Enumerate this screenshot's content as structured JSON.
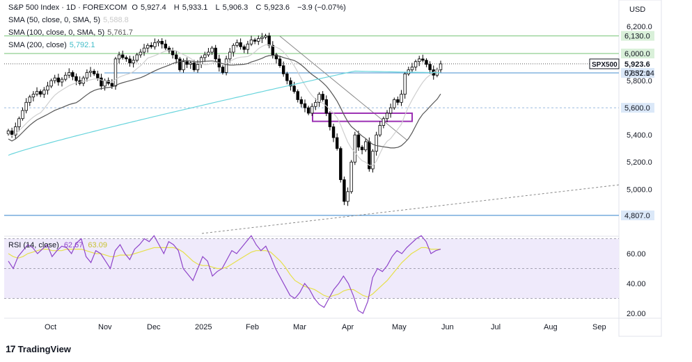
{
  "header": {
    "symbol": "S&P 500 Index · 1D · FOREXCOM",
    "ohlc": [
      {
        "label": "O",
        "value": "5,927.4"
      },
      {
        "label": "H",
        "value": "5,933.1"
      },
      {
        "label": "L",
        "value": "5,906.3"
      },
      {
        "label": "C",
        "value": "5,923.6"
      }
    ],
    "change": "−3.9 (−0.07%)"
  },
  "indicators": [
    {
      "label": "SMA (50, close, 0, SMA, 5)",
      "value": "5,588.8",
      "color": "#c9c9c9"
    },
    {
      "label": "SMA (100, close, 0, SMA, 5)",
      "value": "5,761.7",
      "color": "#555555"
    },
    {
      "label": "SMA (200, close)",
      "value": "5,792.1",
      "color": "#67d4dc"
    }
  ],
  "currency": "USD",
  "brand": "TradingView",
  "colors": {
    "up": "#000000",
    "down": "#000000",
    "support_blue": "#5b9bd5",
    "resistance_green": "#8fcf8f",
    "box_purple": "#9b30b3",
    "rsi_bg": "#efeafb",
    "rsi_line": "#8e44c9",
    "rsi_ma": "#e6e04a"
  },
  "chart_data": [
    {
      "type": "candlestick",
      "title": "S&P 500 Index · 1D · FOREXCOM",
      "x_ticks": [
        "Oct",
        "Nov",
        "Dec",
        "2025",
        "Feb",
        "Mar",
        "Apr",
        "May",
        "Jun",
        "Jul",
        "Aug",
        "Sep"
      ],
      "y_ticks": [
        "6,200.0",
        "6,000.0",
        "5,800.0",
        "5,600.0",
        "5,400.0",
        "5,200.0",
        "5,000.0"
      ],
      "ylim": [
        4780,
        6260
      ],
      "price_labels": [
        {
          "text": "6,130.0",
          "value": 6130,
          "kind": "resistance"
        },
        {
          "text": "6,000.0",
          "value": 6000,
          "kind": "resistance"
        },
        {
          "text": "5,923.6",
          "value": 5923.6,
          "kind": "last"
        },
        {
          "text": "5,857.0",
          "value": 5857,
          "kind": "support"
        },
        {
          "text": "5,600.0",
          "value": 5600,
          "kind": "support"
        },
        {
          "text": "4,807.0",
          "value": 4807,
          "kind": "support"
        }
      ],
      "last_price_tag": {
        "symbol": "SPX500",
        "price": "5,923.6",
        "countdown": "07:32:14"
      },
      "series_approx_close": [
        5430,
        5400,
        5460,
        5520,
        5580,
        5640,
        5680,
        5700,
        5720,
        5700,
        5730,
        5760,
        5800,
        5820,
        5790,
        5810,
        5840,
        5860,
        5830,
        5800,
        5780,
        5820,
        5860,
        5870,
        5850,
        5820,
        5760,
        5800,
        5780,
        5760,
        5960,
        5990,
        5970,
        5960,
        5930,
        5950,
        5990,
        6010,
        6040,
        6060,
        6050,
        6080,
        6090,
        6070,
        6040,
        6020,
        5990,
        5960,
        5880,
        5940,
        5920,
        5930,
        5880,
        5920,
        5970,
        5990,
        6010,
        6040,
        5960,
        5900,
        5860,
        5960,
        6010,
        6060,
        6080,
        6050,
        6030,
        6070,
        6100,
        6090,
        6110,
        6120,
        6130,
        6060,
        5990,
        5960,
        5910,
        5850,
        5800,
        5760,
        5720,
        5660,
        5630,
        5600,
        5560,
        5610,
        5640,
        5700,
        5660,
        5560,
        5460,
        5380,
        5300,
        5070,
        4910,
        4982,
        5200,
        5400,
        5310,
        5290,
        5350,
        5150,
        5280,
        5400,
        5470,
        5520,
        5560,
        5600,
        5660,
        5640,
        5700,
        5850,
        5880,
        5900,
        5940,
        5960,
        5950,
        5920,
        5880,
        5840,
        5880,
        5923.6
      ],
      "moving_averages": [
        {
          "name": "SMA 50",
          "last": 5588.8
        },
        {
          "name": "SMA 100",
          "last": 5761.7
        },
        {
          "name": "SMA 200",
          "last": 5792.1
        }
      ],
      "annotations": [
        {
          "type": "box",
          "label": "support zone",
          "from": 5500,
          "to": 5560
        },
        {
          "type": "trendline",
          "label": "descending trendline"
        },
        {
          "type": "trendline",
          "label": "dashed ascending trendline"
        }
      ]
    },
    {
      "type": "line",
      "title": "RSI (14, close)",
      "values_label": [
        "62.67",
        "63.09"
      ],
      "y_ticks": [
        "60.00",
        "40.00",
        "20.00"
      ],
      "ylim": [
        18,
        76
      ],
      "bands": [
        30,
        50,
        70
      ],
      "series": [
        {
          "name": "RSI",
          "values": [
            55,
            50,
            58,
            62,
            66,
            64,
            60,
            63,
            66,
            58,
            62,
            65,
            64,
            60,
            67,
            70,
            58,
            54,
            62,
            60,
            55,
            50,
            62,
            66,
            60,
            56,
            63,
            66,
            70,
            68,
            72,
            66,
            60,
            68,
            66,
            62,
            50,
            46,
            42,
            50,
            58,
            55,
            45,
            48,
            50,
            56,
            62,
            60,
            64,
            68,
            72,
            66,
            62,
            65,
            58,
            50,
            44,
            38,
            32,
            30,
            34,
            40,
            36,
            30,
            26,
            24,
            30,
            36,
            40,
            45,
            40,
            32,
            22,
            20,
            28,
            44,
            50,
            48,
            52,
            58,
            62,
            60,
            64,
            67,
            70,
            72,
            68,
            60,
            62,
            63
          ]
        },
        {
          "name": "RSI MA",
          "values": [
            60,
            58,
            57,
            58,
            60,
            61,
            62,
            63,
            63,
            62,
            62,
            62,
            63,
            63,
            63,
            63,
            62,
            61,
            60,
            60,
            59,
            58,
            58,
            59,
            59,
            59,
            60,
            61,
            62,
            63,
            64,
            64,
            64,
            64,
            64,
            63,
            61,
            58,
            55,
            53,
            52,
            52,
            51,
            50,
            50,
            51,
            53,
            55,
            57,
            59,
            61,
            62,
            62,
            62,
            61,
            58,
            55,
            51,
            46,
            42,
            40,
            38,
            37,
            36,
            34,
            32,
            31,
            32,
            33,
            35,
            36,
            36,
            34,
            32,
            31,
            33,
            36,
            39,
            42,
            46,
            50,
            54,
            57,
            60,
            62,
            64,
            64,
            63,
            63,
            63
          ]
        }
      ]
    }
  ]
}
